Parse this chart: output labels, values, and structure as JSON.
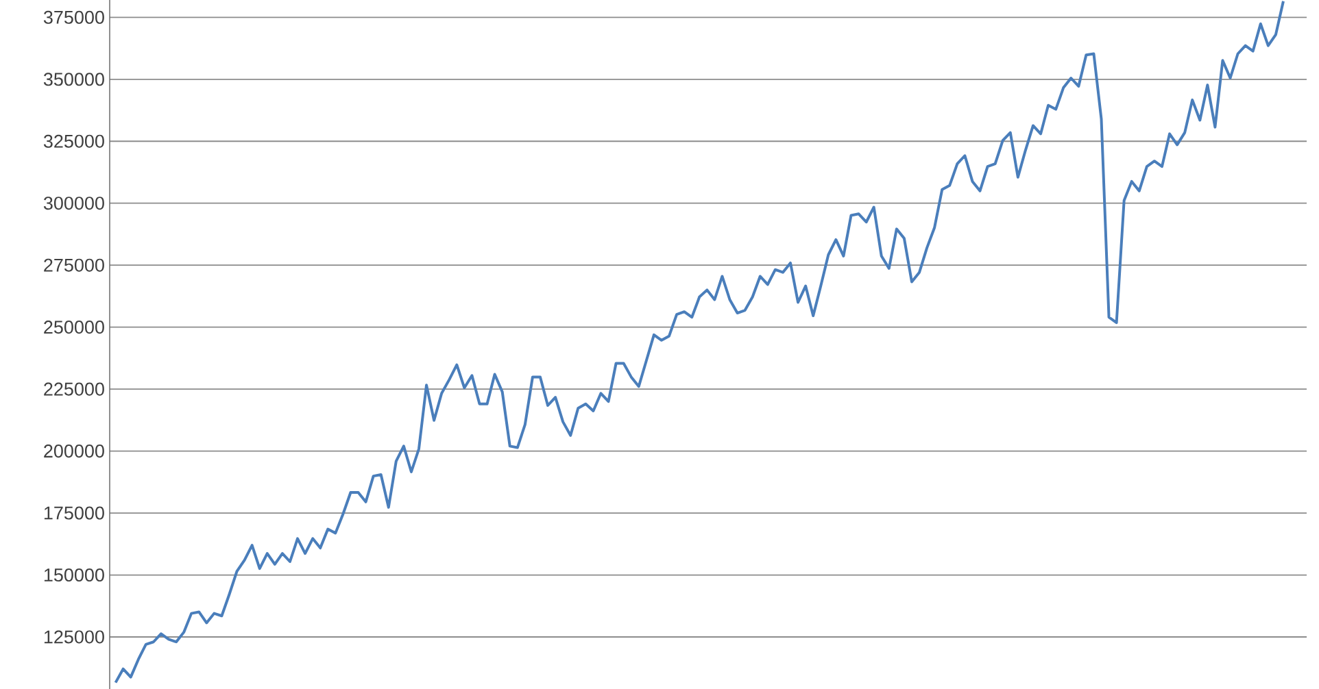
{
  "chart_data": {
    "type": "line",
    "color": "#4a7ebb",
    "grid": "y",
    "tick_labels": "y",
    "marker": "none",
    "line_style": "solid",
    "ylim": [
      104000,
      382000
    ],
    "yticks": [
      125000,
      150000,
      175000,
      200000,
      225000,
      250000,
      275000,
      300000,
      325000,
      350000,
      375000
    ],
    "categories": [
      null,
      null,
      null,
      null,
      null,
      null,
      null,
      null,
      null,
      null,
      null,
      null,
      null,
      null,
      null,
      null,
      null,
      null,
      null,
      null,
      null,
      null,
      null,
      null,
      null,
      null,
      null,
      null,
      null,
      null,
      null,
      null,
      null,
      null,
      null,
      null,
      null,
      null,
      null,
      null,
      null,
      null,
      null,
      null,
      null,
      null,
      null,
      null,
      null,
      null,
      null,
      null,
      null,
      null,
      null,
      null,
      null,
      null,
      null,
      null,
      null,
      null,
      null,
      null,
      null,
      null,
      null,
      null,
      null,
      null,
      null,
      null,
      null,
      null,
      null,
      null,
      null,
      null,
      null,
      null,
      null,
      null,
      null,
      null,
      null,
      null,
      null,
      null,
      null,
      null,
      null,
      null,
      null,
      null,
      null,
      null,
      null,
      null,
      null,
      null,
      null,
      null,
      null,
      null,
      null,
      null,
      null,
      null,
      null,
      null,
      null,
      null,
      null,
      null,
      null,
      null,
      null,
      null,
      null,
      null,
      null,
      null,
      null,
      null,
      null,
      null,
      null,
      null,
      null,
      null,
      null,
      null,
      null,
      null,
      null,
      null,
      null,
      null,
      null,
      null,
      null,
      null,
      null,
      null,
      null,
      null,
      null,
      null,
      null,
      null,
      null,
      null,
      null,
      null,
      null
    ],
    "values": [
      106600,
      112100,
      108800,
      115900,
      122000,
      123000,
      126300,
      124100,
      123000,
      126900,
      134500,
      135100,
      130700,
      134500,
      133500,
      142200,
      151500,
      156000,
      162000,
      152600,
      158700,
      154300,
      158700,
      155400,
      164700,
      158700,
      164700,
      160900,
      168500,
      166900,
      174600,
      183300,
      183300,
      179500,
      189900,
      190500,
      177300,
      195900,
      202000,
      191600,
      200900,
      226600,
      212400,
      223300,
      228800,
      234800,
      225500,
      230500,
      219000,
      219000,
      231000,
      223900,
      202000,
      201400,
      210700,
      229900,
      229900,
      218400,
      221700,
      211800,
      206300,
      217300,
      219000,
      216200,
      223300,
      220000,
      235400,
      235400,
      229900,
      226100,
      236500,
      246900,
      244700,
      246400,
      255100,
      256200,
      254000,
      262200,
      265000,
      261100,
      270500,
      261100,
      255700,
      256800,
      262200,
      270500,
      267200,
      273200,
      272100,
      275900,
      260000,
      266600,
      254600,
      266600,
      279200,
      285300,
      278700,
      295100,
      295700,
      292400,
      298400,
      278700,
      273700,
      289600,
      285800,
      268300,
      272100,
      282000,
      290200,
      305500,
      307200,
      315900,
      319200,
      308800,
      305000,
      314800,
      315900,
      325300,
      328500,
      310500,
      321400,
      331300,
      328000,
      339500,
      337900,
      346600,
      350500,
      347200,
      359800,
      360300,
      334000,
      254000,
      251800,
      301100,
      308800,
      305000,
      314800,
      317000,
      314800,
      328000,
      323600,
      328500,
      341700,
      333500,
      347700,
      330700,
      357600,
      350500,
      360300,
      363600,
      361400,
      372400,
      363600,
      368000,
      381500
    ]
  }
}
